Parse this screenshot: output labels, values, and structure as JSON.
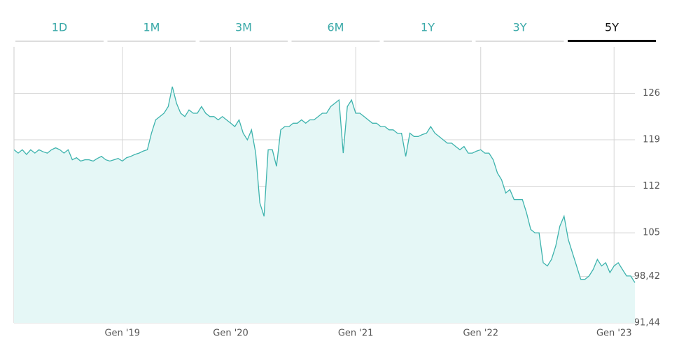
{
  "tabs": {
    "items": [
      "1D",
      "1M",
      "3M",
      "6M",
      "1Y",
      "3Y",
      "5Y"
    ],
    "active": 6
  },
  "chart_data": {
    "type": "area",
    "categories": [
      null,
      null,
      null,
      null,
      null,
      null,
      null,
      null,
      null,
      null,
      null,
      null,
      null,
      null,
      null,
      null,
      null,
      null,
      null,
      null,
      null,
      null,
      null,
      null,
      null,
      null,
      "Gen '19",
      null,
      null,
      null,
      null,
      null,
      null,
      null,
      null,
      null,
      null,
      null,
      null,
      null,
      null,
      null,
      null,
      null,
      null,
      null,
      null,
      null,
      null,
      null,
      null,
      null,
      "Gen '20",
      null,
      null,
      null,
      null,
      null,
      null,
      null,
      null,
      null,
      null,
      null,
      null,
      null,
      null,
      null,
      null,
      null,
      null,
      null,
      null,
      null,
      null,
      null,
      null,
      null,
      null,
      null,
      null,
      null,
      "Gen '21",
      null,
      null,
      null,
      null,
      null,
      null,
      null,
      null,
      null,
      null,
      null,
      null,
      null,
      null,
      null,
      null,
      null,
      null,
      null,
      null,
      null,
      null,
      null,
      null,
      null,
      null,
      null,
      null,
      null,
      "Gen '22",
      null,
      null,
      null,
      null,
      null,
      null,
      null,
      null,
      null,
      null,
      null,
      null,
      null,
      null,
      null,
      null,
      null,
      null,
      null,
      null,
      null,
      null,
      null,
      null,
      null,
      null,
      null,
      null,
      null,
      null,
      null,
      "Gen '23",
      null,
      null,
      null,
      null,
      null
    ],
    "values": [
      117.5,
      117,
      117.5,
      116.8,
      117.5,
      117,
      117.5,
      117.2,
      117,
      117.5,
      117.8,
      117.5,
      117,
      117.5,
      116,
      116.3,
      115.8,
      116,
      116,
      115.8,
      116.2,
      116.5,
      116,
      115.8,
      116,
      116.2,
      115.8,
      116.3,
      116.5,
      116.8,
      117,
      117.3,
      117.5,
      120,
      122,
      122.5,
      123,
      124,
      127,
      124.5,
      123,
      122.5,
      123.5,
      123,
      123,
      124,
      123,
      122.5,
      122.5,
      122,
      122.5,
      122,
      121.5,
      121,
      122,
      120,
      119,
      120.5,
      117,
      109.5,
      107.5,
      117.5,
      117.5,
      115,
      120.5,
      121,
      121,
      121.5,
      121.5,
      122,
      121.5,
      122,
      122,
      122.5,
      123,
      123,
      124,
      124.5,
      125,
      117,
      124,
      125,
      123,
      123,
      122.5,
      122,
      121.5,
      121.5,
      121,
      121,
      120.5,
      120.5,
      120,
      120,
      116.5,
      120,
      119.5,
      119.5,
      119.8,
      120,
      121,
      120,
      119.5,
      119,
      118.5,
      118.5,
      118,
      117.5,
      118,
      117,
      117,
      117.3,
      117.5,
      117,
      117,
      116,
      114,
      113,
      111,
      111.5,
      110,
      110,
      110,
      108,
      105.5,
      105,
      105,
      100.5,
      100,
      101,
      103,
      106,
      107.5,
      104,
      102,
      100,
      98,
      98,
      98.5,
      99.5,
      101,
      100,
      100.5,
      99,
      100,
      100.5,
      99.5,
      98.5,
      98.5,
      97.5
    ],
    "color": "#3db3ad",
    "fill_color": "#e5f7f6",
    "ylim": [
      91.44,
      133
    ],
    "yticks": [
      126,
      119,
      112,
      105,
      {
        "value": 98.42,
        "label": "98,42"
      },
      {
        "value": 91.44,
        "label": "91,44"
      }
    ],
    "grid": true
  }
}
